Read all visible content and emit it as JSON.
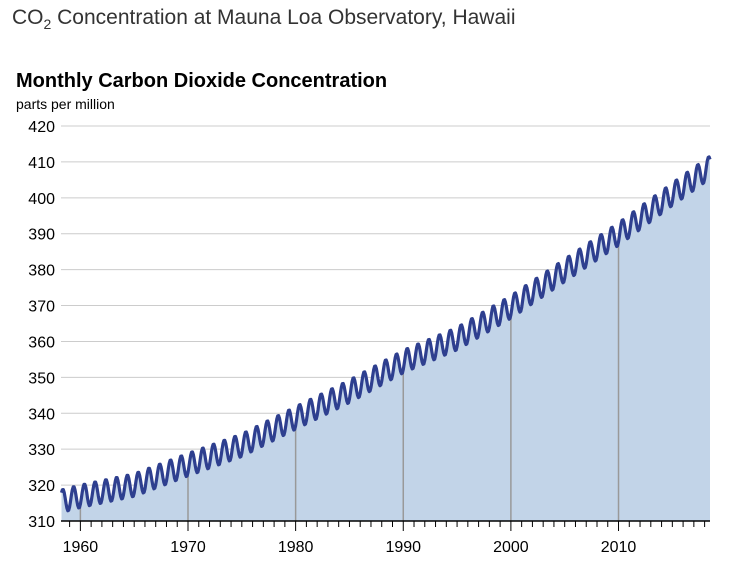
{
  "page": {
    "title_prefix": "CO",
    "title_sub": "2",
    "title_suffix": " Concentration at Mauna Loa Observatory, Hawaii"
  },
  "chart_data": {
    "type": "area",
    "title": "Monthly Carbon Dioxide Concentration",
    "subtitle": "parts per million",
    "xlabel": "",
    "ylabel": "",
    "xlim": [
      1958.2,
      2018.5
    ],
    "ylim": [
      310,
      420
    ],
    "x_ticks": [
      1960,
      1970,
      1980,
      1990,
      2000,
      2010
    ],
    "y_ticks": [
      310,
      320,
      330,
      340,
      350,
      360,
      370,
      380,
      390,
      400,
      410,
      420
    ],
    "grid": true,
    "colors": {
      "line": "#2e3f8f",
      "fill": "#c2d4e8",
      "grid": "#cccccc",
      "year_lines": "#999999"
    },
    "series": [
      {
        "values_description_only": false,
        "x": [
          1958.2,
          1960,
          1965,
          1970,
          1975,
          1980,
          1985,
          1990,
          1995,
          2000,
          2005,
          2010,
          2015,
          2018.5
        ],
        "y": [
          315.5,
          316.9,
          320.0,
          325.7,
          331.1,
          338.7,
          346.1,
          354.4,
          360.8,
          369.6,
          379.8,
          389.9,
          401.0,
          408.5
        ],
        "seasonal_amplitude": 3.2
      }
    ]
  }
}
